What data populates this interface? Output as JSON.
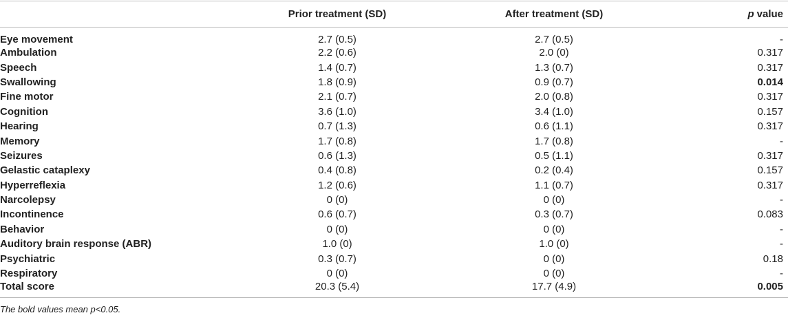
{
  "table": {
    "columns": [
      "Prior treatment (SD)",
      "After treatment (SD)",
      {
        "italic": "p",
        "text": "value"
      }
    ],
    "rows": [
      {
        "label": "Eye movement",
        "prior": "2.7 (0.5)",
        "after": "2.7 (0.5)",
        "p": "-",
        "bold": false
      },
      {
        "label": "Ambulation",
        "prior": "2.2 (0.6)",
        "after": "2.0 (0)",
        "p": "0.317",
        "bold": false
      },
      {
        "label": "Speech",
        "prior": "1.4 (0.7)",
        "after": "1.3 (0.7)",
        "p": "0.317",
        "bold": false
      },
      {
        "label": "Swallowing",
        "prior": "1.8 (0.9)",
        "after": "0.9 (0.7)",
        "p": "0.014",
        "bold": true
      },
      {
        "label": "Fine motor",
        "prior": "2.1 (0.7)",
        "after": "2.0 (0.8)",
        "p": "0.317",
        "bold": false
      },
      {
        "label": "Cognition",
        "prior": "3.6 (1.0)",
        "after": "3.4 (1.0)",
        "p": "0.157",
        "bold": false
      },
      {
        "label": "Hearing",
        "prior": "0.7 (1.3)",
        "after": "0.6 (1.1)",
        "p": "0.317",
        "bold": false
      },
      {
        "label": "Memory",
        "prior": "1.7 (0.8)",
        "after": "1.7 (0.8)",
        "p": "-",
        "bold": false
      },
      {
        "label": "Seizures",
        "prior": "0.6 (1.3)",
        "after": "0.5 (1.1)",
        "p": "0.317",
        "bold": false
      },
      {
        "label": "Gelastic cataplexy",
        "prior": "0.4 (0.8)",
        "after": "0.2 (0.4)",
        "p": "0.157",
        "bold": false
      },
      {
        "label": "Hyperreflexia",
        "prior": "1.2 (0.6)",
        "after": "1.1 (0.7)",
        "p": "0.317",
        "bold": false
      },
      {
        "label": "Narcolepsy",
        "prior": "0 (0)",
        "after": "0 (0)",
        "p": "-",
        "bold": false
      },
      {
        "label": "Incontinence",
        "prior": "0.6 (0.7)",
        "after": "0.3 (0.7)",
        "p": "0.083",
        "bold": false
      },
      {
        "label": "Behavior",
        "prior": "0 (0)",
        "after": "0 (0)",
        "p": "-",
        "bold": false
      },
      {
        "label": "Auditory brain response (ABR)",
        "prior": "1.0 (0)",
        "after": "1.0 (0)",
        "p": "-",
        "bold": false
      },
      {
        "label": "Psychiatric",
        "prior": "0.3 (0.7)",
        "after": "0 (0)",
        "p": "0.18",
        "bold": false
      },
      {
        "label": "Respiratory",
        "prior": "0 (0)",
        "after": "0 (0)",
        "p": "-",
        "bold": false
      },
      {
        "label": "Total score",
        "prior": "20.3 (5.4)",
        "after": "17.7 (4.9)",
        "p": "0.005",
        "bold": true
      }
    ],
    "footnote": "The bold values mean p<0.05."
  }
}
